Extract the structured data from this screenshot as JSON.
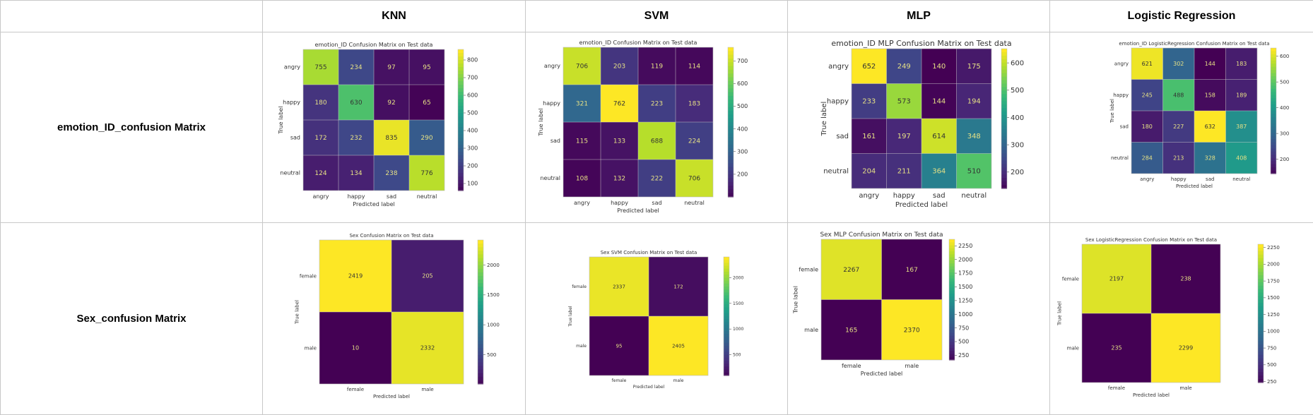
{
  "columns": [
    "KNN",
    "SVM",
    "MLP",
    "Logistic Regression"
  ],
  "rows": [
    "emotion_ID_confusion Matrix",
    "Sex_confusion Matrix"
  ],
  "chart_data": [
    {
      "type": "heatmap",
      "title": "emotion_ID Confusion Matrix on Test data",
      "xlabel": "Predicted label",
      "ylabel": "True label",
      "categories": [
        "angry",
        "happy",
        "sad",
        "neutral"
      ],
      "values": [
        [
          755,
          234,
          97,
          95
        ],
        [
          180,
          630,
          92,
          65
        ],
        [
          172,
          232,
          835,
          290
        ],
        [
          124,
          134,
          238,
          776
        ]
      ],
      "colorbar_ticks": [
        "100",
        "200",
        "300",
        "400",
        "500",
        "600",
        "700",
        "800"
      ],
      "vmin": 60,
      "vmax": 860
    },
    {
      "type": "heatmap",
      "title": "emotion_ID Confusion Matrix on Test data",
      "xlabel": "Predicted label",
      "ylabel": "True label",
      "categories": [
        "angry",
        "happy",
        "sad",
        "neutral"
      ],
      "values": [
        [
          706,
          203,
          119,
          114
        ],
        [
          321,
          762,
          223,
          183
        ],
        [
          115,
          133,
          688,
          224
        ],
        [
          108,
          132,
          222,
          706
        ]
      ],
      "colorbar_ticks": [
        "200",
        "300",
        "400",
        "500",
        "600",
        "700"
      ],
      "vmin": 100,
      "vmax": 760
    },
    {
      "type": "heatmap",
      "title": "emotion_ID MLP Confusion Matrix on Test data",
      "xlabel": "Predicted label",
      "ylabel": "True label",
      "categories": [
        "angry",
        "happy",
        "sad",
        "neutral"
      ],
      "values": [
        [
          652,
          249,
          140,
          175
        ],
        [
          233,
          573,
          144,
          194
        ],
        [
          161,
          197,
          614,
          348
        ],
        [
          204,
          211,
          364,
          510
        ]
      ],
      "colorbar_ticks": [
        "200",
        "300",
        "400",
        "500",
        "600"
      ],
      "vmin": 140,
      "vmax": 652
    },
    {
      "type": "heatmap",
      "title": "emotion_ID LogisticRegression Confusion Matrix on Test data",
      "xlabel": "Predicted label",
      "ylabel": "True label",
      "categories": [
        "angry",
        "happy",
        "sad",
        "neutral"
      ],
      "values": [
        [
          621,
          302,
          144,
          183
        ],
        [
          245,
          488,
          158,
          189
        ],
        [
          180,
          227,
          632,
          387
        ],
        [
          284,
          213,
          328,
          408
        ]
      ],
      "colorbar_ticks": [
        "200",
        "300",
        "400",
        "500",
        "600"
      ],
      "vmin": 144,
      "vmax": 632
    },
    {
      "type": "heatmap",
      "title": "Sex Confusion Matrix on Test data",
      "xlabel": "Predicted label",
      "ylabel": "True label",
      "categories": [
        "female",
        "male"
      ],
      "values": [
        [
          2419,
          205
        ],
        [
          10,
          2332
        ]
      ],
      "colorbar_ticks": [
        "500",
        "1000",
        "1500",
        "2000"
      ],
      "vmin": 10,
      "vmax": 2419
    },
    {
      "type": "heatmap",
      "title": "Sex SVM Confusion Matrix on Test data",
      "xlabel": "Predicted label",
      "ylabel": "True label",
      "categories": [
        "female",
        "male"
      ],
      "values": [
        [
          2337,
          172
        ],
        [
          95,
          2405
        ]
      ],
      "colorbar_ticks": [
        "500",
        "1000",
        "1500",
        "2000"
      ],
      "vmin": 95,
      "vmax": 2405
    },
    {
      "type": "heatmap",
      "title": "Sex MLP Confusion Matrix on Test data",
      "xlabel": "Predicted label",
      "ylabel": "True label",
      "categories": [
        "female",
        "male"
      ],
      "values": [
        [
          2267,
          167
        ],
        [
          165,
          2370
        ]
      ],
      "colorbar_ticks": [
        "250",
        "500",
        "750",
        "1000",
        "1250",
        "1500",
        "1750",
        "2000",
        "2250"
      ],
      "vmin": 165,
      "vmax": 2370
    },
    {
      "type": "heatmap",
      "title": "Sex LogisticRegression Confusion Matrix on Test data",
      "xlabel": "Predicted label",
      "ylabel": "True label",
      "categories": [
        "female",
        "male"
      ],
      "values": [
        [
          2197,
          238
        ],
        [
          235,
          2299
        ]
      ],
      "colorbar_ticks": [
        "250",
        "500",
        "750",
        "1000",
        "1250",
        "1500",
        "1750",
        "2000",
        "2250"
      ],
      "vmin": 235,
      "vmax": 2299
    }
  ]
}
